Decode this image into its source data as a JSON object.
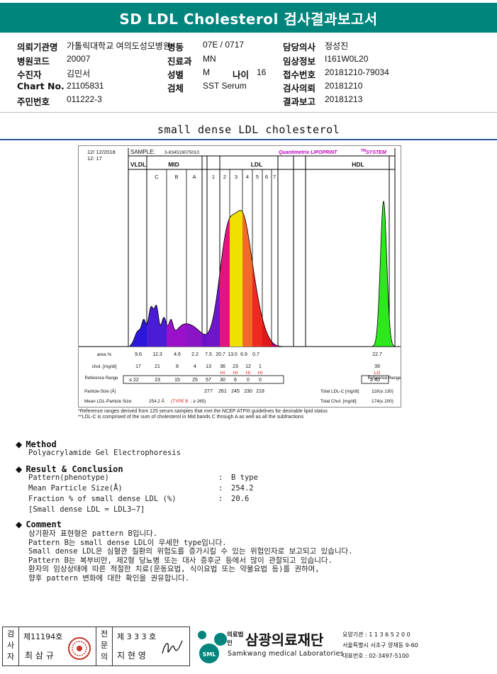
{
  "report": {
    "title": "SD LDL Cholesterol 검사결과보고서",
    "section_title": "small dense LDL cholesterol"
  },
  "header": {
    "left": [
      {
        "label": "의뢰기관명",
        "value": "가톨릭대학교 여의도성모병원"
      },
      {
        "label": "병원코드",
        "value": "20007"
      },
      {
        "label": "수진자",
        "value": "김민서"
      },
      {
        "label": "Chart No.",
        "value": "21105831"
      },
      {
        "label": "주민번호",
        "value": "011222-3"
      }
    ],
    "mid": [
      {
        "label": "병동",
        "value": "07E / 0717"
      },
      {
        "label": "진료과",
        "value": "MN"
      },
      {
        "label": "성별",
        "value": "M"
      },
      {
        "label": "검체",
        "value": "SST Serum"
      }
    ],
    "age": {
      "label": "나이",
      "value": "16"
    },
    "right": [
      {
        "label": "담당의사",
        "value": "정성진"
      },
      {
        "label": "임상정보",
        "value": "I161W0L20"
      },
      {
        "label": "접수번호",
        "value": "20181210-79034"
      },
      {
        "label": "검사의뢰",
        "value": "20181210"
      },
      {
        "label": "결과보고",
        "value": "20181213"
      }
    ]
  },
  "chart_data": {
    "type": "area",
    "date": "12/ 12/2018",
    "time": "12: 17",
    "sample_label": "SAMPLE:",
    "sample_id": "3-834519075010",
    "system": "Quantimetrix LIPOPRINT",
    "system_tm": "TM",
    "system_suffix": " SYSTEM",
    "groups": {
      "vldl": "VLDL",
      "mid": "MID",
      "ldl": "LDL",
      "hdl": "HDL"
    },
    "bands": [
      "C",
      "B",
      "A",
      "1",
      "2",
      "3",
      "4",
      "5",
      "6",
      "7"
    ],
    "row_labels": {
      "area": "area %",
      "chol": "chol. [mg/dl]",
      "ref": "Reference Range",
      "ref_right": "Reference Range",
      "particle": "Particle-Size (Å)"
    },
    "area_pct": [
      "9.6",
      "12.3",
      "4.6",
      "2.2",
      "7.5",
      "20.7",
      "13.0",
      "6.9",
      "0.7"
    ],
    "area_hdl": "22.7",
    "chol": [
      "17",
      "21",
      "8",
      "4",
      "13",
      "36",
      "23",
      "12",
      "1"
    ],
    "chol_hi": [
      "",
      "",
      "",
      "",
      "",
      "HI",
      "HI",
      "HI",
      "HI"
    ],
    "chol_hdl": "39",
    "chol_hdl_flag": "LO",
    "ref": [
      "≤ 22",
      "23",
      "15",
      "25",
      "57",
      "30",
      "6",
      "0",
      "0"
    ],
    "ref_hdl": "≥ 40",
    "particle_size": [
      "277",
      "261",
      "245",
      "230",
      "218"
    ],
    "mean_size_label": "Mean LDL-Particle Size:",
    "mean_size_value": "254.2 Å",
    "type_label": "(TYPE B",
    "type_ref": "; ≥ 265)",
    "total_ldl_label": "Total LDL-C [mg/dl]:",
    "total_ldl_value": "118",
    "total_ldl_ref": "(≤ 130)",
    "total_chol_label": "Total Chol. [mg/dl]:",
    "total_chol_value": "174",
    "total_chol_ref": "(≤ 200)",
    "note1": "*Reference ranges derived from 125 serum samples that met the NCEP ATPIII guidelines for desirable lipid status",
    "note2": "**LDL-C is comprised of the sum of cholesterol in Mid bands C through A as well as all the subfractions"
  },
  "method": {
    "heading": "Method",
    "text": "Polyacrylamide Gel Electrophoresis"
  },
  "result": {
    "heading": "Result & Conclusion",
    "rows": [
      {
        "label": "Pattern(phenotype)",
        "value": "B type"
      },
      {
        "label": "Mean Particle Size(Å)",
        "value": "254.2"
      },
      {
        "label": "Fraction % of small dense LDL (%)",
        "value": "20.6"
      }
    ],
    "note": "[Small dense LDL = LDL3~7]",
    "sep": ":"
  },
  "comment": {
    "heading": "Comment",
    "lines": [
      "상기환자 표현형은 pattern B입니다.",
      "Pattern B는 small dense LDL이 우세한 type입니다.",
      "Small dense LDL은 심혈관 질환의 위험도를 증가시킬 수 있는 위험인자로 보고되고 있습니다.",
      "Pattern B는 복부비만, 제2형 당뇨병 또는 대사 증후군 등에서 많이 관찰되고 있습니다.",
      "환자의 임상상태에 따른 적절한 치료(운동요법, 식이요법 또는 약물요법 등)를 권하며,",
      "향후 pattern 변화에 대한 확인을 권유합니다."
    ]
  },
  "footer": {
    "inspector_label": "검사자",
    "inspector_no": "제11194호",
    "inspector_name": "최 삼 규",
    "specialist_label": "전문의",
    "specialist_no": "제 3 3 3 호",
    "specialist_name": "지 현 영",
    "org_type": "의료법인",
    "org_name": "삼광의료재단",
    "org_en": "Samkwang medical Laboratories",
    "org_short": "SML",
    "code_line": "요양기관 : 1 1 3 6 5 2 0 0",
    "address": "서울특별시 서초구 양재동 9-60",
    "phone": "대표번호 : 02-3497-5100",
    "brand_color": "#00857d"
  }
}
